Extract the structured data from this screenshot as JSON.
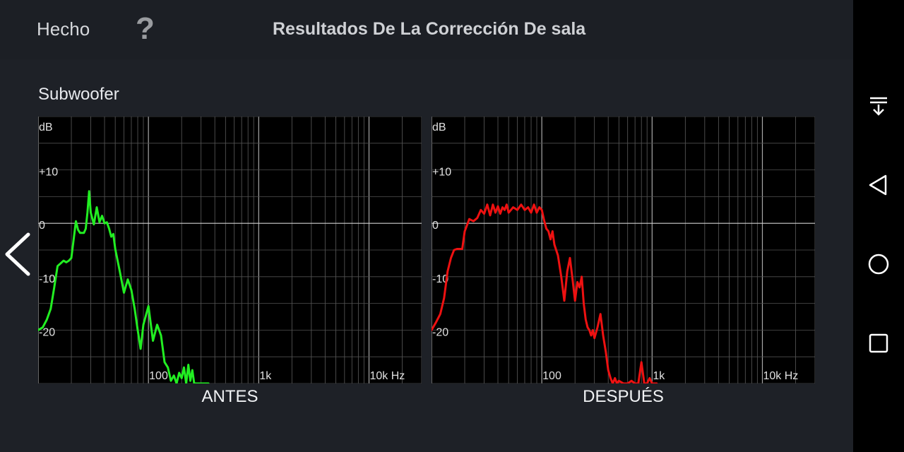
{
  "header": {
    "done_label": "Hecho",
    "help_symbol": "?",
    "title": "Resultados De La Corrección De sala"
  },
  "section": {
    "label": "Subwoofer"
  },
  "charts": {
    "before_label": "ANTES",
    "after_label": "DESPUÉS"
  },
  "icons": {
    "back": "chevron-left-icon",
    "help": "question-mark-icon",
    "nav_notifications": "notification-pull-down-icon",
    "nav_back": "triangle-back-icon",
    "nav_home": "circle-home-icon",
    "nav_recents": "square-recents-icon"
  },
  "chart_data": [
    {
      "type": "line",
      "title": "ANTES",
      "xlabel": "Hz",
      "ylabel": "dB",
      "x_scale": "log",
      "xlim": [
        10,
        30000
      ],
      "ylim": [
        -30,
        20
      ],
      "x_ticks": [
        {
          "value": 100,
          "label": "100"
        },
        {
          "value": 1000,
          "label": "1k"
        },
        {
          "value": 10000,
          "label": "10k Hz"
        }
      ],
      "y_ticks": [
        {
          "value": 20,
          "label": "dB"
        },
        {
          "value": 10,
          "label": "+10"
        },
        {
          "value": 0,
          "label": "0"
        },
        {
          "value": -10,
          "label": "-10"
        },
        {
          "value": -20,
          "label": "-20"
        }
      ],
      "color": "#22ee22",
      "series": [
        {
          "x": [
            10,
            11,
            12,
            13,
            14,
            15,
            16,
            17,
            18,
            19,
            20,
            21,
            22,
            23,
            24,
            25,
            26,
            27,
            28,
            29,
            30,
            32,
            34,
            36,
            38,
            40,
            42,
            44,
            46,
            48,
            50,
            55,
            60,
            65,
            70,
            75,
            80,
            85,
            90,
            100,
            110,
            120,
            130,
            140,
            150,
            160,
            170,
            180,
            190,
            200,
            210,
            220,
            230,
            240,
            250,
            260,
            270,
            280,
            290,
            300,
            310,
            320,
            330,
            340,
            350
          ],
          "y": [
            -20,
            -19.5,
            -18,
            -16,
            -12,
            -8,
            -7.5,
            -7,
            -7.3,
            -7,
            -6.5,
            -3,
            0.4,
            -1.2,
            -1.8,
            -1.8,
            -1.8,
            -1,
            2,
            6,
            2,
            -0.2,
            3,
            0.2,
            1.4,
            0,
            0.2,
            -1,
            -2.5,
            -2,
            -4.8,
            -9,
            -13,
            -10.5,
            -12.5,
            -16,
            -20,
            -23.5,
            -19,
            -15.5,
            -22,
            -19,
            -21,
            -26,
            -27,
            -29.5,
            -28.5,
            -30,
            -28,
            -29,
            -27,
            -30,
            -26.5,
            -29.5,
            -27.5,
            -30,
            -30,
            -30,
            -30,
            -30,
            -30,
            -30,
            -30,
            -30,
            -30
          ]
        }
      ]
    },
    {
      "type": "line",
      "title": "DESPUÉS",
      "xlabel": "Hz",
      "ylabel": "dB",
      "x_scale": "log",
      "xlim": [
        10,
        30000
      ],
      "ylim": [
        -30,
        20
      ],
      "x_ticks": [
        {
          "value": 100,
          "label": "100"
        },
        {
          "value": 1000,
          "label": "1k"
        },
        {
          "value": 10000,
          "label": "10k Hz"
        }
      ],
      "y_ticks": [
        {
          "value": 20,
          "label": "dB"
        },
        {
          "value": 10,
          "label": "+10"
        },
        {
          "value": 0,
          "label": "0"
        },
        {
          "value": -10,
          "label": "-10"
        },
        {
          "value": -20,
          "label": "-20"
        }
      ],
      "color": "#ee1111",
      "series": [
        {
          "x": [
            10,
            11,
            12,
            13,
            14,
            15,
            16,
            17,
            18,
            19,
            20,
            22,
            24,
            26,
            28,
            30,
            32,
            34,
            36,
            38,
            40,
            42,
            44,
            46,
            48,
            50,
            55,
            60,
            65,
            70,
            75,
            80,
            85,
            90,
            95,
            100,
            105,
            110,
            115,
            120,
            125,
            130,
            140,
            150,
            160,
            170,
            180,
            190,
            200,
            210,
            220,
            230,
            240,
            250,
            260,
            270,
            280,
            290,
            300,
            320,
            340,
            360,
            380,
            400,
            420,
            440,
            460,
            480,
            500,
            550,
            600,
            650,
            700,
            750,
            800,
            850,
            900,
            950,
            1000,
            1050,
            1100
          ],
          "y": [
            -20,
            -18.5,
            -17,
            -14,
            -9,
            -6.5,
            -5,
            -4.8,
            -4.8,
            -4.8,
            -1.5,
            0.8,
            0.4,
            1,
            2.5,
            1.8,
            3.5,
            1.5,
            3.5,
            2,
            3.2,
            1.8,
            3,
            2.5,
            3.5,
            2,
            3,
            2.5,
            3.5,
            2.5,
            3,
            2,
            3.5,
            2,
            3,
            2.5,
            0.5,
            -1,
            -1.5,
            -3,
            -1.5,
            -4,
            -6,
            -10,
            -14.5,
            -9,
            -6.5,
            -10.5,
            -14.5,
            -11,
            -12,
            -10,
            -15,
            -18,
            -19.5,
            -20,
            -21,
            -20,
            -21.5,
            -19.5,
            -17,
            -21,
            -24,
            -27.5,
            -29,
            -30,
            -29,
            -30,
            -29.5,
            -30,
            -30,
            -29.5,
            -30,
            -30,
            -26,
            -30,
            -30,
            -29,
            -30,
            -30,
            -30
          ]
        }
      ]
    }
  ]
}
